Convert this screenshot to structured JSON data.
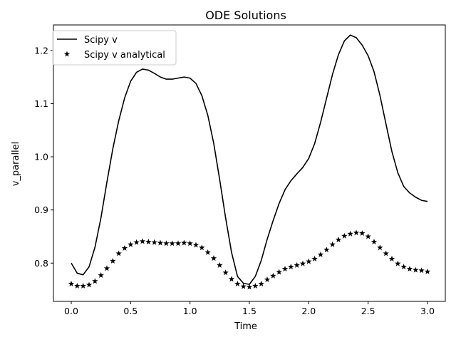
{
  "chart_data": {
    "type": "line",
    "title": "ODE Solutions",
    "xlabel": "Time",
    "ylabel": "v_parallel",
    "xlim": [
      -0.15,
      3.15
    ],
    "ylim": [
      0.728,
      1.248
    ],
    "xticks": [
      "0.0",
      "0.5",
      "1.0",
      "1.5",
      "2.0",
      "2.5",
      "3.0"
    ],
    "yticks": [
      "0.8",
      "0.9",
      "1.0",
      "1.1",
      "1.2"
    ],
    "xtick_values": [
      0.0,
      0.5,
      1.0,
      1.5,
      2.0,
      2.5,
      3.0
    ],
    "ytick_values": [
      0.8,
      0.9,
      1.0,
      1.1,
      1.2
    ],
    "grid": false,
    "legend_position": "top-left",
    "line_color": "#000000",
    "series": [
      {
        "name": "Scipy v",
        "style": "line",
        "x": [
          0.0,
          0.05,
          0.1,
          0.15,
          0.2,
          0.25,
          0.3,
          0.35,
          0.4,
          0.45,
          0.5,
          0.55,
          0.6,
          0.65,
          0.7,
          0.75,
          0.8,
          0.85,
          0.9,
          0.95,
          1.0,
          1.05,
          1.1,
          1.15,
          1.2,
          1.25,
          1.3,
          1.35,
          1.4,
          1.45,
          1.5,
          1.55,
          1.6,
          1.65,
          1.7,
          1.75,
          1.8,
          1.85,
          1.9,
          1.95,
          2.0,
          2.05,
          2.1,
          2.15,
          2.2,
          2.25,
          2.3,
          2.35,
          2.4,
          2.45,
          2.5,
          2.55,
          2.6,
          2.65,
          2.7,
          2.75,
          2.8,
          2.85,
          2.9,
          2.95,
          3.0
        ],
        "values": [
          0.8,
          0.781,
          0.778,
          0.793,
          0.83,
          0.885,
          0.952,
          1.015,
          1.068,
          1.111,
          1.142,
          1.159,
          1.165,
          1.163,
          1.157,
          1.15,
          1.146,
          1.146,
          1.148,
          1.15,
          1.148,
          1.138,
          1.115,
          1.078,
          1.025,
          0.957,
          0.885,
          0.82,
          0.775,
          0.762,
          0.76,
          0.775,
          0.805,
          0.845,
          0.88,
          0.912,
          0.938,
          0.955,
          0.968,
          0.98,
          0.997,
          1.025,
          1.065,
          1.11,
          1.155,
          1.192,
          1.218,
          1.229,
          1.224,
          1.21,
          1.19,
          1.16,
          1.115,
          1.062,
          1.01,
          0.97,
          0.944,
          0.932,
          0.924,
          0.918,
          0.916
        ]
      },
      {
        "name": "Scipy v analytical",
        "style": "stars",
        "x": [
          0.0,
          0.05,
          0.1,
          0.15,
          0.2,
          0.25,
          0.3,
          0.35,
          0.4,
          0.45,
          0.5,
          0.55,
          0.6,
          0.65,
          0.7,
          0.75,
          0.8,
          0.85,
          0.9,
          0.95,
          1.0,
          1.05,
          1.1,
          1.15,
          1.2,
          1.25,
          1.3,
          1.35,
          1.4,
          1.45,
          1.5,
          1.55,
          1.6,
          1.65,
          1.7,
          1.75,
          1.8,
          1.85,
          1.9,
          1.95,
          2.0,
          2.05,
          2.1,
          2.15,
          2.2,
          2.25,
          2.3,
          2.35,
          2.4,
          2.45,
          2.5,
          2.55,
          2.6,
          2.65,
          2.7,
          2.75,
          2.8,
          2.85,
          2.9,
          2.95,
          3.0
        ],
        "values": [
          0.761,
          0.757,
          0.757,
          0.759,
          0.766,
          0.777,
          0.79,
          0.804,
          0.818,
          0.828,
          0.835,
          0.839,
          0.841,
          0.84,
          0.839,
          0.838,
          0.837,
          0.837,
          0.837,
          0.838,
          0.837,
          0.834,
          0.829,
          0.82,
          0.809,
          0.796,
          0.782,
          0.77,
          0.761,
          0.756,
          0.755,
          0.757,
          0.761,
          0.769,
          0.776,
          0.783,
          0.789,
          0.793,
          0.796,
          0.799,
          0.803,
          0.808,
          0.816,
          0.825,
          0.835,
          0.844,
          0.851,
          0.855,
          0.857,
          0.856,
          0.85,
          0.84,
          0.829,
          0.818,
          0.808,
          0.799,
          0.793,
          0.789,
          0.787,
          0.786,
          0.784
        ]
      }
    ]
  }
}
